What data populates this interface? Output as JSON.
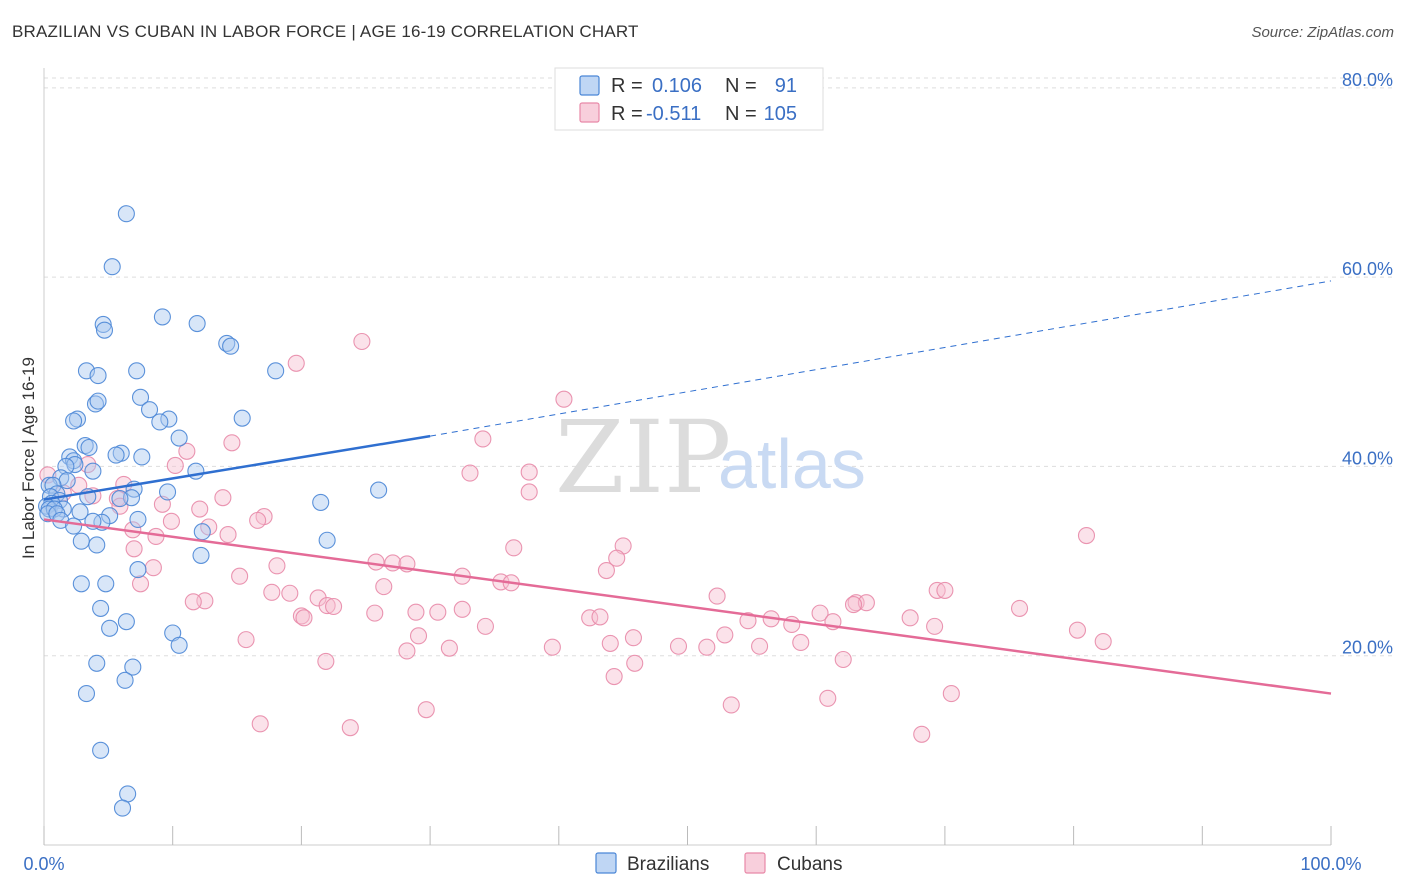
{
  "header": {
    "title": "BRAZILIAN VS CUBAN IN LABOR FORCE | AGE 16-19 CORRELATION CHART",
    "source": "Source: ZipAtlas.com"
  },
  "watermark": {
    "zip": "ZIP",
    "atlas": "atlas"
  },
  "colors": {
    "brazilian_fill": "#a9c8f0",
    "brazilian_stroke": "#4a86d6",
    "brazilian_line": "#2f6fd0",
    "cuban_fill": "#f6bfd0",
    "cuban_stroke": "#e889a8",
    "cuban_line": "#e46b97",
    "tick_text": "#3a6fc4",
    "grid": "#dddddd"
  },
  "legend": {
    "rows": [
      {
        "r_label": "R =",
        "r_value": "0.106",
        "n_label": "N =",
        "n_value": "91"
      },
      {
        "r_label": "R =",
        "r_value": "-0.511",
        "n_label": "N =",
        "n_value": "105"
      }
    ]
  },
  "bottom_legend": {
    "brazilians": "Brazilians",
    "cubans": "Cubans"
  },
  "chart_data": {
    "type": "scatter",
    "title": "BRAZILIAN VS CUBAN IN LABOR FORCE | AGE 16-19 CORRELATION CHART",
    "xlabel": "",
    "ylabel": "In Labor Force | Age 16-19",
    "xlim": [
      0,
      100
    ],
    "ylim": [
      0,
      84
    ],
    "x_tick_labels": [
      "0.0%",
      "100.0%"
    ],
    "y_ticks": [
      20,
      40,
      60,
      80
    ],
    "y_tick_labels": [
      "20.0%",
      "40.0%",
      "60.0%",
      "80.0%"
    ],
    "grid": true,
    "series": [
      {
        "name": "Brazilians",
        "R": 0.106,
        "N": 91,
        "trend": {
          "x0": 0,
          "y0": 36.5,
          "x1": 30,
          "y1": 43.2,
          "dashed_to_x": 100,
          "dashed_to_y": 59.6
        },
        "points": [
          [
            6.4,
            66.7
          ],
          [
            5.3,
            61.1
          ],
          [
            9.2,
            55.8
          ],
          [
            11.9,
            55.1
          ],
          [
            4.6,
            55.0
          ],
          [
            4.7,
            54.4
          ],
          [
            14.2,
            53.0
          ],
          [
            14.5,
            52.7
          ],
          [
            3.3,
            50.1
          ],
          [
            7.2,
            50.1
          ],
          [
            18.0,
            50.1
          ],
          [
            4.2,
            49.6
          ],
          [
            7.5,
            47.3
          ],
          [
            4.0,
            46.6
          ],
          [
            4.2,
            46.9
          ],
          [
            8.2,
            46.0
          ],
          [
            2.6,
            45.0
          ],
          [
            9.7,
            45.0
          ],
          [
            9.0,
            44.7
          ],
          [
            15.4,
            45.1
          ],
          [
            2.3,
            44.8
          ],
          [
            10.5,
            43.0
          ],
          [
            3.2,
            42.2
          ],
          [
            3.5,
            42.0
          ],
          [
            6.0,
            41.4
          ],
          [
            5.6,
            41.2
          ],
          [
            7.6,
            41.0
          ],
          [
            2.0,
            41.0
          ],
          [
            2.3,
            40.6
          ],
          [
            2.4,
            40.2
          ],
          [
            1.7,
            40.0
          ],
          [
            11.8,
            39.5
          ],
          [
            3.8,
            39.5
          ],
          [
            1.3,
            38.8
          ],
          [
            1.8,
            38.5
          ],
          [
            0.4,
            38.0
          ],
          [
            0.7,
            38.0
          ],
          [
            7.0,
            37.6
          ],
          [
            26.0,
            37.5
          ],
          [
            9.6,
            37.3
          ],
          [
            1.0,
            37.1
          ],
          [
            0.5,
            36.8
          ],
          [
            3.4,
            36.8
          ],
          [
            6.8,
            36.7
          ],
          [
            5.9,
            36.6
          ],
          [
            1.2,
            36.4
          ],
          [
            0.6,
            36.1
          ],
          [
            0.2,
            35.8
          ],
          [
            0.4,
            35.5
          ],
          [
            1.5,
            35.5
          ],
          [
            0.8,
            35.5
          ],
          [
            2.8,
            35.2
          ],
          [
            0.3,
            35.0
          ],
          [
            1.0,
            35.0
          ],
          [
            5.1,
            34.8
          ],
          [
            7.3,
            34.4
          ],
          [
            1.3,
            34.3
          ],
          [
            4.5,
            34.1
          ],
          [
            3.8,
            34.2
          ],
          [
            2.3,
            33.7
          ],
          [
            21.5,
            36.2
          ],
          [
            12.3,
            33.1
          ],
          [
            2.9,
            32.1
          ],
          [
            4.1,
            31.7
          ],
          [
            22.0,
            32.2
          ],
          [
            12.2,
            30.6
          ],
          [
            7.3,
            29.1
          ],
          [
            2.9,
            27.6
          ],
          [
            4.8,
            27.6
          ],
          [
            4.4,
            25.0
          ],
          [
            6.4,
            23.6
          ],
          [
            5.1,
            22.9
          ],
          [
            10.0,
            22.4
          ],
          [
            10.5,
            21.1
          ],
          [
            4.1,
            19.2
          ],
          [
            6.9,
            18.8
          ],
          [
            6.3,
            17.4
          ],
          [
            3.3,
            16.0
          ],
          [
            4.4,
            10.0
          ],
          [
            6.5,
            5.4
          ],
          [
            6.1,
            3.9
          ]
        ]
      },
      {
        "name": "Cubans",
        "R": -0.511,
        "N": 105,
        "trend": {
          "x0": 0,
          "y0": 34.4,
          "x1": 100,
          "y1": 16.0
        },
        "points": [
          [
            24.7,
            53.2
          ],
          [
            19.6,
            50.9
          ],
          [
            40.4,
            47.1
          ],
          [
            34.1,
            42.9
          ],
          [
            14.6,
            42.5
          ],
          [
            11.1,
            41.6
          ],
          [
            10.2,
            40.1
          ],
          [
            3.4,
            40.2
          ],
          [
            33.1,
            39.3
          ],
          [
            37.7,
            39.4
          ],
          [
            0.3,
            39.1
          ],
          [
            6.2,
            38.1
          ],
          [
            2.7,
            38.0
          ],
          [
            37.7,
            37.3
          ],
          [
            1.5,
            37.2
          ],
          [
            3.8,
            36.9
          ],
          [
            13.9,
            36.7
          ],
          [
            5.7,
            36.6
          ],
          [
            9.2,
            36.0
          ],
          [
            5.9,
            35.8
          ],
          [
            12.1,
            35.5
          ],
          [
            17.1,
            34.7
          ],
          [
            16.6,
            34.3
          ],
          [
            9.9,
            34.2
          ],
          [
            12.8,
            33.6
          ],
          [
            6.9,
            33.3
          ],
          [
            14.3,
            32.8
          ],
          [
            8.7,
            32.6
          ],
          [
            81.0,
            32.7
          ],
          [
            7.0,
            31.3
          ],
          [
            36.5,
            31.4
          ],
          [
            45.0,
            31.6
          ],
          [
            44.5,
            30.3
          ],
          [
            25.8,
            29.9
          ],
          [
            27.1,
            29.8
          ],
          [
            28.2,
            29.7
          ],
          [
            18.1,
            29.5
          ],
          [
            8.5,
            29.3
          ],
          [
            43.7,
            29.0
          ],
          [
            15.2,
            28.4
          ],
          [
            32.5,
            28.4
          ],
          [
            35.5,
            27.8
          ],
          [
            36.3,
            27.7
          ],
          [
            7.5,
            27.6
          ],
          [
            26.4,
            27.3
          ],
          [
            69.4,
            26.9
          ],
          [
            70.0,
            26.9
          ],
          [
            17.7,
            26.7
          ],
          [
            19.1,
            26.6
          ],
          [
            52.3,
            26.3
          ],
          [
            12.5,
            25.8
          ],
          [
            11.6,
            25.7
          ],
          [
            21.3,
            26.1
          ],
          [
            22.0,
            25.3
          ],
          [
            22.5,
            25.2
          ],
          [
            63.1,
            25.6
          ],
          [
            63.9,
            25.6
          ],
          [
            62.9,
            25.4
          ],
          [
            75.8,
            25.0
          ],
          [
            32.5,
            24.9
          ],
          [
            28.9,
            24.6
          ],
          [
            25.7,
            24.5
          ],
          [
            30.6,
            24.6
          ],
          [
            20.0,
            24.2
          ],
          [
            60.3,
            24.5
          ],
          [
            42.4,
            24.0
          ],
          [
            43.2,
            24.1
          ],
          [
            56.5,
            23.9
          ],
          [
            54.7,
            23.7
          ],
          [
            61.3,
            23.6
          ],
          [
            67.3,
            24.0
          ],
          [
            58.1,
            23.3
          ],
          [
            69.2,
            23.1
          ],
          [
            34.3,
            23.1
          ],
          [
            80.3,
            22.7
          ],
          [
            20.2,
            24.0
          ],
          [
            52.9,
            22.2
          ],
          [
            29.1,
            22.1
          ],
          [
            45.8,
            21.9
          ],
          [
            15.7,
            21.7
          ],
          [
            58.8,
            21.4
          ],
          [
            44.0,
            21.3
          ],
          [
            82.3,
            21.5
          ],
          [
            55.6,
            21.0
          ],
          [
            49.3,
            21.0
          ],
          [
            51.5,
            20.9
          ],
          [
            31.5,
            20.8
          ],
          [
            39.5,
            20.9
          ],
          [
            28.2,
            20.5
          ],
          [
            62.1,
            19.6
          ],
          [
            21.9,
            19.4
          ],
          [
            45.9,
            19.2
          ],
          [
            44.3,
            17.8
          ],
          [
            70.5,
            16.0
          ],
          [
            60.9,
            15.5
          ],
          [
            53.4,
            14.8
          ],
          [
            29.7,
            14.3
          ],
          [
            16.8,
            12.8
          ],
          [
            23.8,
            12.4
          ],
          [
            68.2,
            11.7
          ]
        ]
      }
    ]
  }
}
